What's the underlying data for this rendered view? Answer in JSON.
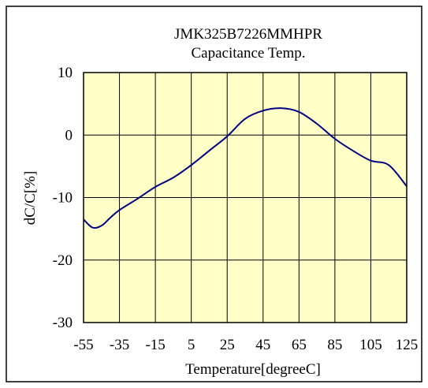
{
  "chart_data": {
    "type": "line",
    "title": "JMK325B7226MMHPR",
    "subtitle": "Capacitance Temp.",
    "xlabel": "Temperature[degreeC]",
    "ylabel": "dC/C[%]",
    "xlim": [
      -55,
      125
    ],
    "ylim": [
      -30,
      10
    ],
    "x_ticks": [
      -55,
      -35,
      -15,
      5,
      25,
      45,
      65,
      85,
      105,
      125
    ],
    "y_ticks": [
      10,
      0,
      -10,
      -20,
      -30
    ],
    "grid": true,
    "colors": {
      "plot_background": "#ffffc8",
      "line": "#000080",
      "grid": "#000000",
      "frame": "#000000"
    },
    "series": [
      {
        "x": [
          -55,
          -50,
          -45,
          -40,
          -35,
          -25,
          -15,
          -5,
          5,
          15,
          25,
          35,
          45,
          55,
          65,
          75,
          85,
          95,
          105,
          115,
          125
        ],
        "y": [
          -13.5,
          -14.8,
          -14.5,
          -13.2,
          -12.0,
          -10.2,
          -8.3,
          -6.8,
          -4.8,
          -2.5,
          -0.2,
          2.6,
          3.9,
          4.3,
          3.7,
          1.8,
          -0.6,
          -2.5,
          -4.1,
          -4.8,
          -8.2
        ]
      }
    ]
  }
}
